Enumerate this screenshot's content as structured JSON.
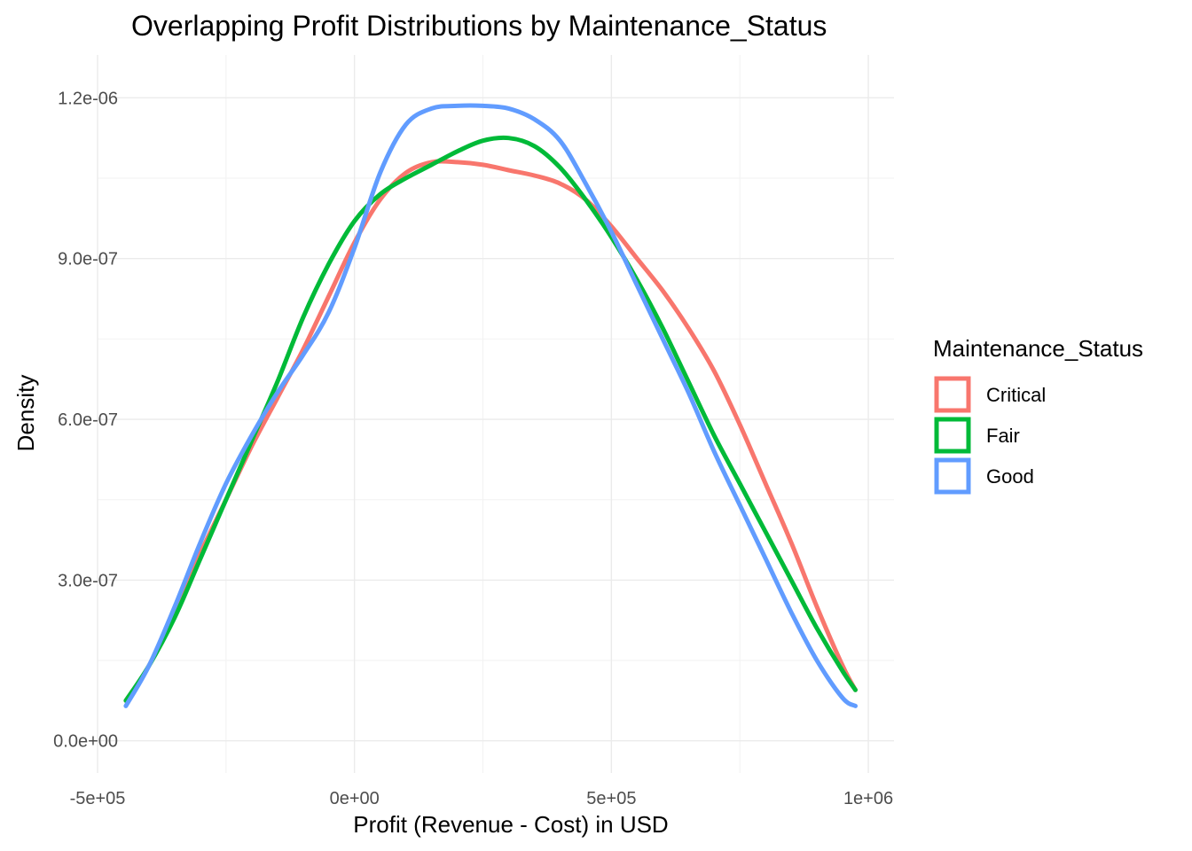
{
  "chart_data": {
    "type": "line",
    "title": "Overlapping Profit Distributions by Maintenance_Status",
    "xlabel": "Profit (Revenue - Cost) in USD",
    "ylabel": "Density",
    "xlim": [
      -500000,
      1050000
    ],
    "ylim": [
      -6e-08,
      1.28e-06
    ],
    "x_ticks": [
      {
        "value": -500000,
        "label": "-5e+05"
      },
      {
        "value": 0,
        "label": "0e+00"
      },
      {
        "value": 500000,
        "label": "5e+05"
      },
      {
        "value": 1000000,
        "label": "1e+06"
      }
    ],
    "y_ticks": [
      {
        "value": 0,
        "label": "0.0e+00"
      },
      {
        "value": 3e-07,
        "label": "3.0e-07"
      },
      {
        "value": 6e-07,
        "label": "6.0e-07"
      },
      {
        "value": 9e-07,
        "label": "9.0e-07"
      },
      {
        "value": 1.2e-06,
        "label": "1.2e-06"
      }
    ],
    "grid": true,
    "legend": {
      "title": "Maintenance_Status",
      "position": "right"
    },
    "series": [
      {
        "name": "Critical",
        "color": "#F8766D",
        "x": [
          -445000,
          -400000,
          -350000,
          -300000,
          -250000,
          -200000,
          -150000,
          -100000,
          -50000,
          0,
          50000,
          100000,
          150000,
          200000,
          250000,
          300000,
          350000,
          400000,
          450000,
          500000,
          550000,
          600000,
          650000,
          700000,
          750000,
          800000,
          850000,
          900000,
          950000,
          975000
        ],
        "y": [
          7.5e-08,
          1.4e-07,
          2.4e-07,
          3.5e-07,
          4.5e-07,
          5.5e-07,
          6.4e-07,
          7.3e-07,
          8.3e-07,
          9.3e-07,
          1.01e-06,
          1.06e-06,
          1.08e-06,
          1.08e-06,
          1.075e-06,
          1.065e-06,
          1.055e-06,
          1.04e-06,
          1.01e-06,
          9.6e-07,
          9e-07,
          8.4e-07,
          7.7e-07,
          6.9e-07,
          5.9e-07,
          4.8e-07,
          3.7e-07,
          2.5e-07,
          1.4e-07,
          9.5e-08
        ]
      },
      {
        "name": "Fair",
        "color": "#00BA38",
        "x": [
          -445000,
          -400000,
          -350000,
          -300000,
          -250000,
          -200000,
          -150000,
          -100000,
          -50000,
          0,
          50000,
          100000,
          150000,
          200000,
          250000,
          300000,
          350000,
          400000,
          450000,
          500000,
          550000,
          600000,
          650000,
          700000,
          750000,
          800000,
          850000,
          900000,
          950000,
          975000
        ],
        "y": [
          7.5e-08,
          1.4e-07,
          2.3e-07,
          3.4e-07,
          4.5e-07,
          5.6e-07,
          6.7e-07,
          7.9e-07,
          8.9e-07,
          9.7e-07,
          1.02e-06,
          1.05e-06,
          1.075e-06,
          1.1e-06,
          1.12e-06,
          1.125e-06,
          1.11e-06,
          1.07e-06,
          1.01e-06,
          9.4e-07,
          8.6e-07,
          7.7e-07,
          6.7e-07,
          5.7e-07,
          4.8e-07,
          3.9e-07,
          3e-07,
          2.1e-07,
          1.3e-07,
          9.5e-08
        ]
      },
      {
        "name": "Good",
        "color": "#619CFF",
        "x": [
          -445000,
          -400000,
          -350000,
          -300000,
          -250000,
          -200000,
          -150000,
          -100000,
          -50000,
          0,
          50000,
          100000,
          150000,
          200000,
          250000,
          300000,
          350000,
          400000,
          450000,
          500000,
          550000,
          600000,
          650000,
          700000,
          750000,
          800000,
          850000,
          900000,
          950000,
          975000
        ],
        "y": [
          6.5e-08,
          1.4e-07,
          2.5e-07,
          3.7e-07,
          4.8e-07,
          5.7e-07,
          6.5e-07,
          7.2e-07,
          8e-07,
          9.2e-07,
          1.06e-06,
          1.15e-06,
          1.18e-06,
          1.185e-06,
          1.185e-06,
          1.18e-06,
          1.16e-06,
          1.12e-06,
          1.04e-06,
          9.5e-07,
          8.5e-07,
          7.5e-07,
          6.5e-07,
          5.4e-07,
          4.4e-07,
          3.4e-07,
          2.4e-07,
          1.5e-07,
          8e-08,
          6.5e-08
        ]
      }
    ]
  }
}
